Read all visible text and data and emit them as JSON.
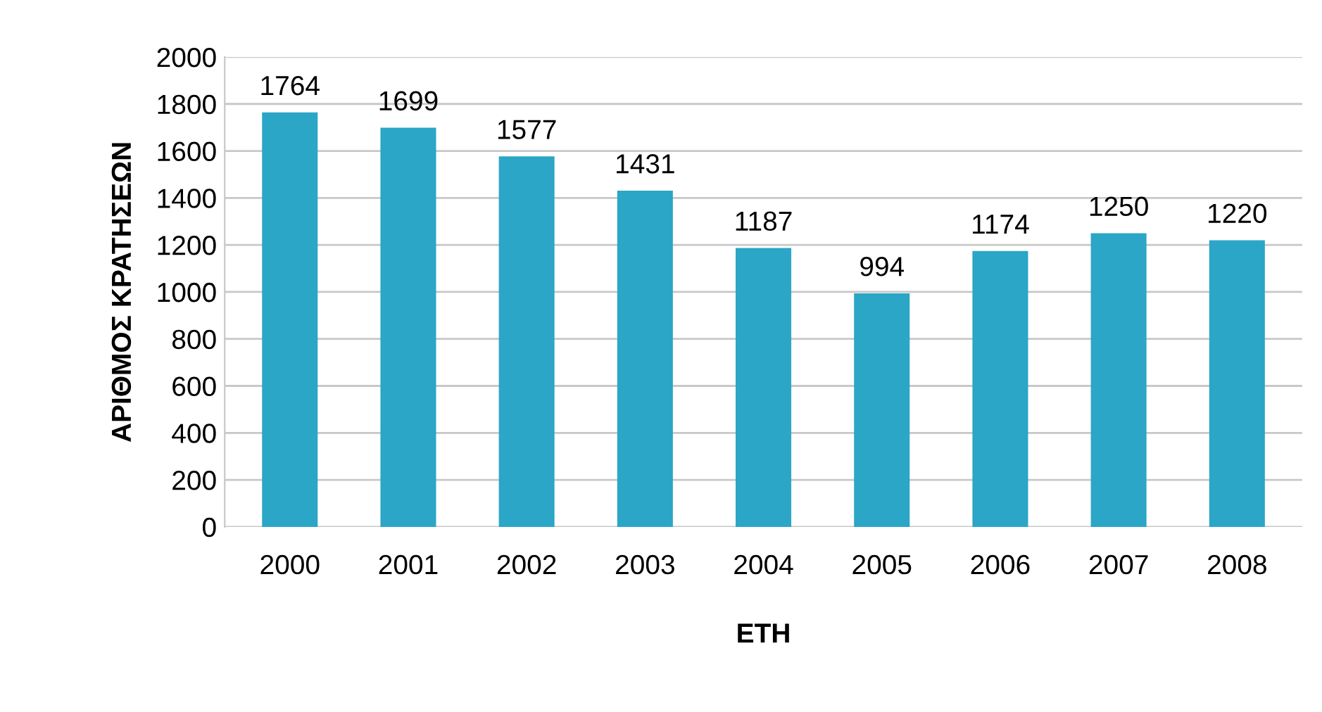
{
  "chart_data": {
    "type": "bar",
    "xlabel": "ΕΤΗ",
    "ylabel": "ΑΡΙΘΜΟΣ ΚΡΑΤΗΣΕΩΝ",
    "categories": [
      "2000",
      "2001",
      "2002",
      "2003",
      "2004",
      "2005",
      "2006",
      "2007",
      "2008"
    ],
    "values": [
      1764,
      1699,
      1577,
      1431,
      1187,
      994,
      1174,
      1250,
      1220
    ],
    "color": "#2ba6c6",
    "ylim": [
      0,
      2000
    ],
    "yticks": [
      0,
      200,
      400,
      600,
      800,
      1000,
      1200,
      1400,
      1600,
      1800,
      2000
    ],
    "grid": "y",
    "data_labels": true,
    "legend": false
  }
}
